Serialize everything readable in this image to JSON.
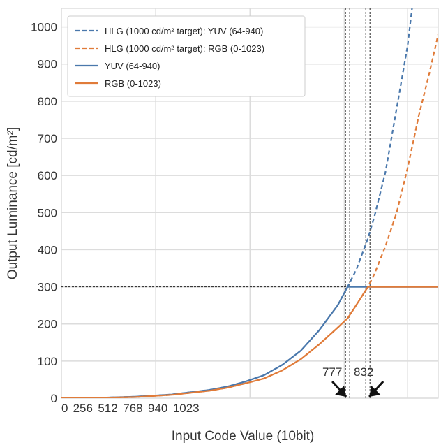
{
  "chart_data": {
    "type": "line",
    "title": "",
    "xlabel": "Input Code Value (10bit)",
    "ylabel": "Output Luminance [cd/m²]",
    "xlim": [
      0,
      1023
    ],
    "ylim": [
      0,
      1050
    ],
    "x_ticks": [
      0,
      256,
      512,
      768,
      940,
      1023
    ],
    "y_ticks": [
      0,
      100,
      200,
      300,
      400,
      500,
      600,
      700,
      800,
      900,
      1000
    ],
    "grid": true,
    "legend_position": "top-left",
    "colors": {
      "blue": "#4a78ac",
      "orange": "#e07b39"
    },
    "series": [
      {
        "name": "HLG (1000 cd/m² target): YUV (64-940)",
        "style": "dashed",
        "color": "#4a78ac",
        "x": [
          0,
          100,
          200,
          300,
          400,
          450,
          500,
          550,
          600,
          650,
          700,
          750,
          777,
          800,
          832,
          850,
          880,
          910,
          940,
          952
        ],
        "y": [
          0,
          1,
          4,
          10,
          22,
          31,
          45,
          62,
          90,
          128,
          183,
          250,
          300,
          345,
          430,
          490,
          610,
          780,
          950,
          1050
        ]
      },
      {
        "name": "HLG (1000 cd/m² target): RGB (0-1023)",
        "style": "dashed",
        "color": "#e07b39",
        "x": [
          0,
          100,
          200,
          300,
          400,
          450,
          500,
          550,
          600,
          650,
          700,
          750,
          777,
          800,
          832,
          850,
          880,
          910,
          940,
          970,
          1000,
          1023
        ],
        "y": [
          0,
          1,
          3,
          9,
          20,
          28,
          40,
          53,
          75,
          105,
          145,
          190,
          215,
          250,
          300,
          335,
          410,
          500,
          620,
          760,
          880,
          980
        ]
      },
      {
        "name": "YUV (64-940)",
        "style": "solid",
        "color": "#4a78ac",
        "x": [
          0,
          100,
          200,
          300,
          400,
          450,
          500,
          550,
          600,
          650,
          700,
          750,
          777,
          832,
          1023
        ],
        "y": [
          0,
          1,
          4,
          10,
          22,
          31,
          45,
          62,
          90,
          128,
          183,
          250,
          300,
          300,
          300
        ]
      },
      {
        "name": "RGB (0-1023)",
        "style": "solid",
        "color": "#e07b39",
        "x": [
          0,
          100,
          200,
          300,
          400,
          450,
          500,
          550,
          600,
          650,
          700,
          750,
          777,
          800,
          832,
          1023
        ],
        "y": [
          0,
          1,
          3,
          9,
          20,
          28,
          40,
          53,
          75,
          105,
          145,
          190,
          215,
          250,
          300,
          300
        ]
      }
    ],
    "annotations": [
      {
        "text": "777",
        "x": 777
      },
      {
        "text": "832",
        "x": 832
      }
    ],
    "reference_lines": {
      "horizontal_y": 300,
      "vertical_x": [
        777,
        832
      ]
    }
  }
}
